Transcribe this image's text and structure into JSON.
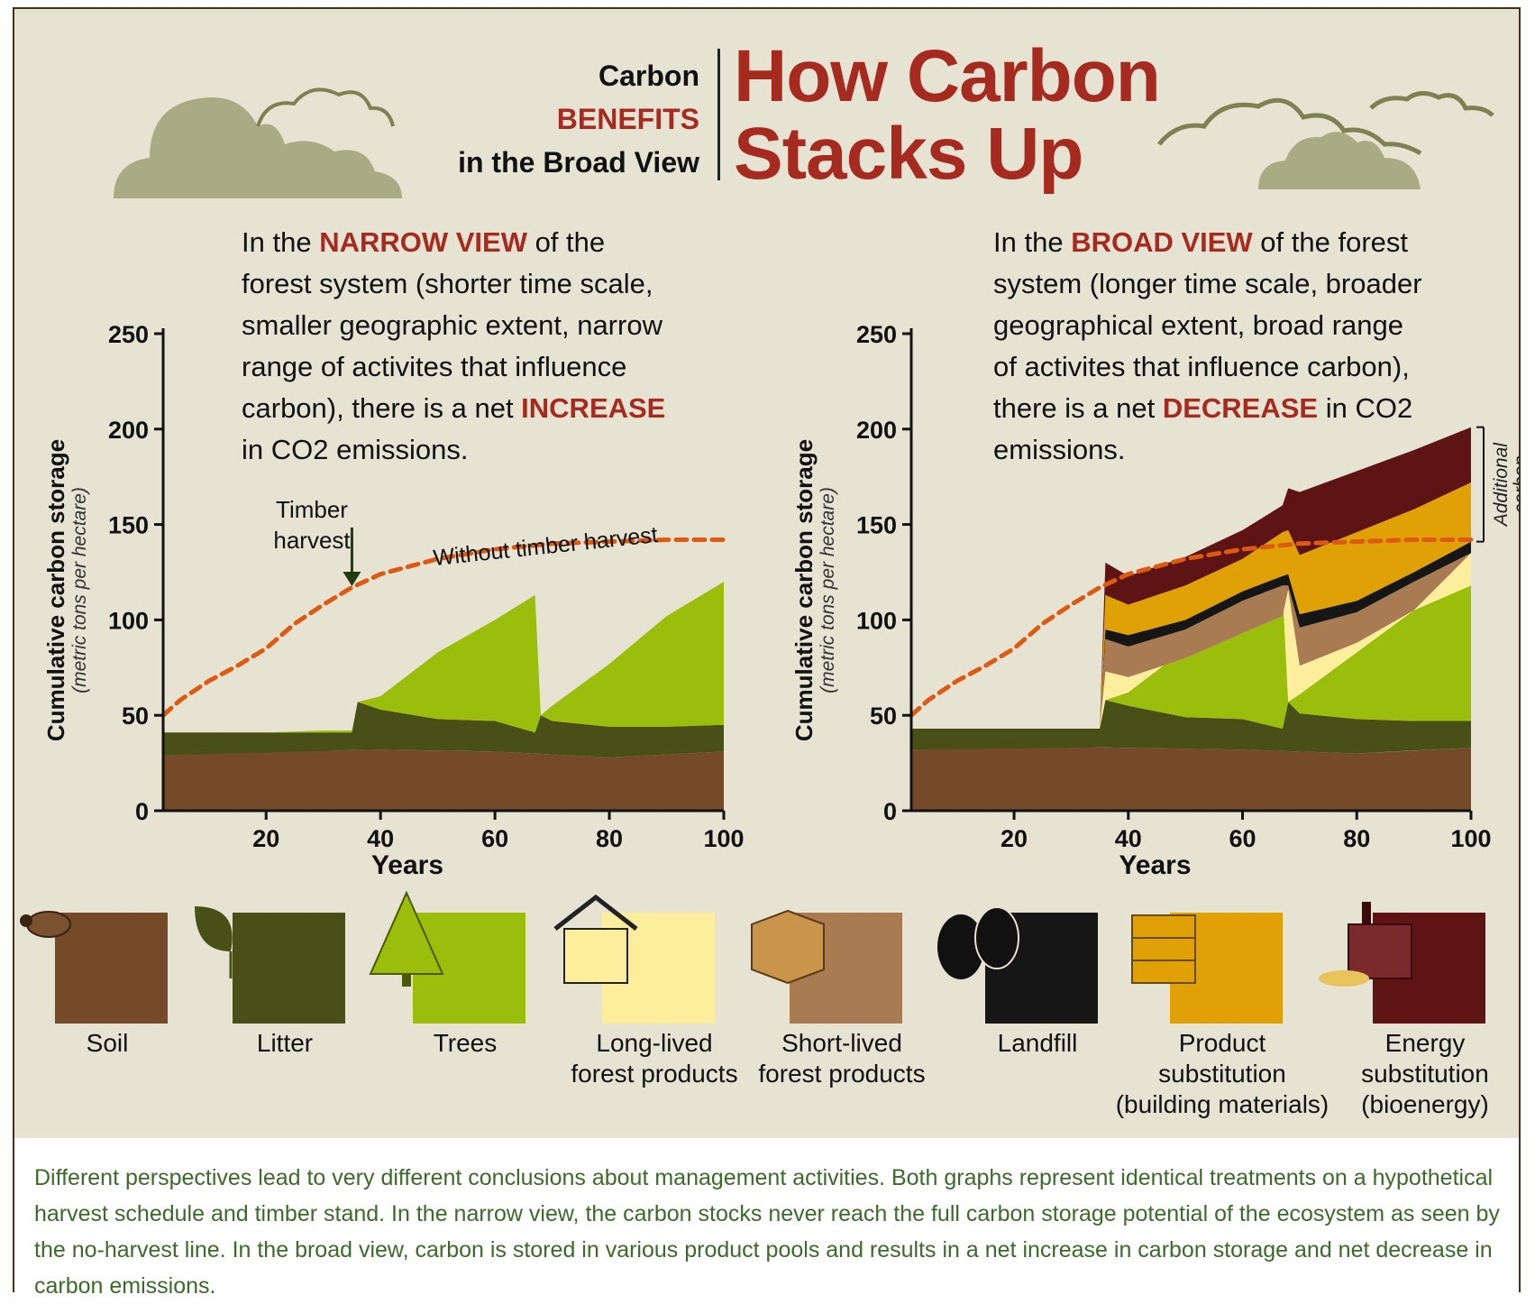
{
  "header": {
    "kicker_line1": "Carbon",
    "kicker_line2": "BENEFITS",
    "kicker_line3": "in the Broad View",
    "title_line1": "How Carbon",
    "title_line2": "Stacks Up"
  },
  "narrow_intro": {
    "p1": "In the ",
    "em1": "NARROW VIEW",
    "p2": " of the forest system (shorter time scale, smaller geographic extent, narrow range of activites that influence carbon), there is a net ",
    "em2": "INCREASE",
    "p3": " in CO2 emissions."
  },
  "broad_intro": {
    "p1": "In the ",
    "em1": "BROAD VIEW",
    "p2": " of the forest system (longer time scale, broader geographical extent, broad range of activites that influence carbon), there is a net ",
    "em2": "DECREASE",
    "p3": " in CO2 emissions."
  },
  "colors": {
    "soil": "#744a28",
    "litter": "#485018",
    "trees": "#9bbd0c",
    "long_lived": "#fdee9e",
    "short_lived": "#a87b52",
    "landfill": "#161616",
    "product_sub": "#e0a106",
    "energy_sub": "#5e1414",
    "harvest_line": "#dd5a13",
    "axis": "#111111"
  },
  "chart_data": [
    {
      "type": "area",
      "name": "narrow-view",
      "xlabel": "Years",
      "ylabel": "Cumulative carbon storage",
      "ylabel_sub": "(metric tons per hectare)",
      "xlim": [
        2,
        100
      ],
      "ylim": [
        0,
        250
      ],
      "xticks": [
        20,
        40,
        60,
        80,
        100
      ],
      "yticks": [
        0,
        50,
        100,
        150,
        200,
        250
      ],
      "annotations": {
        "timber_harvest_1": "Timber",
        "timber_harvest_2": "harvest",
        "no_harvest_label": "Without timber harvest"
      },
      "series": [
        {
          "key": "soil",
          "x": [
            2,
            20,
            40,
            60,
            80,
            100
          ],
          "top": [
            29,
            31,
            32,
            31,
            28,
            31
          ]
        },
        {
          "key": "litter",
          "x": [
            2,
            35,
            36,
            40,
            50,
            60,
            67,
            68,
            70,
            80,
            90,
            100
          ],
          "top": [
            41,
            41,
            57,
            53,
            48,
            47,
            41,
            50,
            47,
            44,
            44,
            45
          ]
        },
        {
          "key": "trees",
          "x": [
            2,
            10,
            20,
            30,
            35,
            36,
            40,
            50,
            60,
            67,
            68,
            70,
            80,
            90,
            100
          ],
          "top": [
            41,
            41,
            41,
            42,
            42,
            57,
            60,
            83,
            100,
            113,
            50,
            55,
            77,
            102,
            120
          ]
        }
      ],
      "no_harvest": {
        "x": [
          2,
          5,
          10,
          15,
          20,
          25,
          30,
          35,
          40,
          50,
          60,
          70,
          80,
          90,
          100
        ],
        "y": [
          50,
          58,
          68,
          76,
          85,
          98,
          108,
          117,
          124,
          132,
          137,
          140,
          141,
          142,
          142
        ]
      }
    },
    {
      "type": "area",
      "name": "broad-view",
      "xlabel": "Years",
      "ylabel": "Cumulative carbon storage",
      "ylabel_sub": "(metric tons per hectare)",
      "xlim": [
        2,
        100
      ],
      "ylim": [
        0,
        250
      ],
      "xticks": [
        20,
        40,
        60,
        80,
        100
      ],
      "yticks": [
        0,
        50,
        100,
        150,
        200,
        250
      ],
      "annotations": {
        "additional_1": "Additional",
        "additional_2": "carbon"
      },
      "series": [
        {
          "key": "soil",
          "x": [
            2,
            20,
            40,
            60,
            80,
            100
          ],
          "top": [
            32,
            34,
            33,
            32,
            30,
            33
          ]
        },
        {
          "key": "litter",
          "x": [
            2,
            35,
            36,
            40,
            50,
            60,
            67,
            68,
            70,
            80,
            90,
            100
          ],
          "top": [
            43,
            43,
            58,
            55,
            49,
            48,
            43,
            57,
            51,
            48,
            47,
            47
          ]
        },
        {
          "key": "trees",
          "x": [
            2,
            10,
            20,
            30,
            35,
            36,
            40,
            50,
            60,
            67,
            68,
            70,
            80,
            90,
            100
          ],
          "top": [
            43,
            43,
            43,
            43,
            43,
            58,
            62,
            85,
            102,
            116,
            57,
            61,
            83,
            105,
            118
          ]
        },
        {
          "key": "long_lived",
          "x": [
            35,
            36,
            40,
            50,
            60,
            67,
            68,
            70,
            80,
            90,
            100
          ],
          "top": [
            43,
            73,
            70,
            80,
            93,
            102,
            116,
            76,
            88,
            105,
            135
          ]
        },
        {
          "key": "short_lived",
          "x": [
            35,
            36,
            40,
            50,
            60,
            67,
            68,
            70,
            80,
            90,
            100
          ],
          "top": [
            43,
            90,
            86,
            95,
            110,
            118,
            118,
            96,
            104,
            120,
            135
          ]
        },
        {
          "key": "landfill",
          "x": [
            35,
            36,
            40,
            50,
            60,
            67,
            68,
            70,
            80,
            90,
            100
          ],
          "top": [
            43,
            95,
            92,
            100,
            115,
            123,
            124,
            103,
            110,
            125,
            141
          ]
        },
        {
          "key": "product_sub",
          "x": [
            35,
            36,
            40,
            50,
            60,
            67,
            68,
            70,
            80,
            90,
            100
          ],
          "top": [
            43,
            113,
            108,
            118,
            132,
            146,
            147,
            134,
            146,
            158,
            172
          ]
        },
        {
          "key": "energy_sub",
          "x": [
            35,
            36,
            40,
            50,
            60,
            67,
            68,
            70,
            80,
            90,
            100
          ],
          "top": [
            43,
            130,
            123,
            133,
            147,
            160,
            169,
            167,
            178,
            189,
            201
          ]
        }
      ],
      "no_harvest": {
        "x": [
          2,
          5,
          10,
          15,
          20,
          25,
          30,
          35,
          40,
          50,
          60,
          70,
          80,
          90,
          100
        ],
        "y": [
          50,
          58,
          68,
          76,
          85,
          98,
          108,
          117,
          124,
          132,
          137,
          140,
          141,
          142,
          142
        ]
      }
    }
  ],
  "legend": [
    {
      "label": "Soil",
      "color_key": "soil",
      "icon": "beetle-icon"
    },
    {
      "label": "Litter",
      "color_key": "litter",
      "icon": "leaf-icon"
    },
    {
      "label": "Trees",
      "color_key": "trees",
      "icon": "tree-icon"
    },
    {
      "label": "Long-lived\nforest products",
      "color_key": "long_lived",
      "icon": "house-icon"
    },
    {
      "label": "Short-lived\nforest products",
      "color_key": "short_lived",
      "icon": "box-icon"
    },
    {
      "label": "Landfill",
      "color_key": "landfill",
      "icon": "trash-bag-icon"
    },
    {
      "label": "Product\nsubstitution\n(building materials)",
      "color_key": "product_sub",
      "icon": "lumber-icon"
    },
    {
      "label": "Energy\nsubstitution\n(bioenergy)",
      "color_key": "energy_sub",
      "icon": "factory-icon"
    }
  ],
  "caption": "Different perspectives lead to very different conclusions about management activities. Both graphs represent identical treatments on a hypothetical harvest schedule and timber stand. In the narrow view, the carbon stocks never reach the full carbon storage potential of the ecosystem as seen by the no-harvest line. In the broad view, carbon is stored in various product pools and results in a net increase in carbon storage and net decrease in carbon emissions."
}
